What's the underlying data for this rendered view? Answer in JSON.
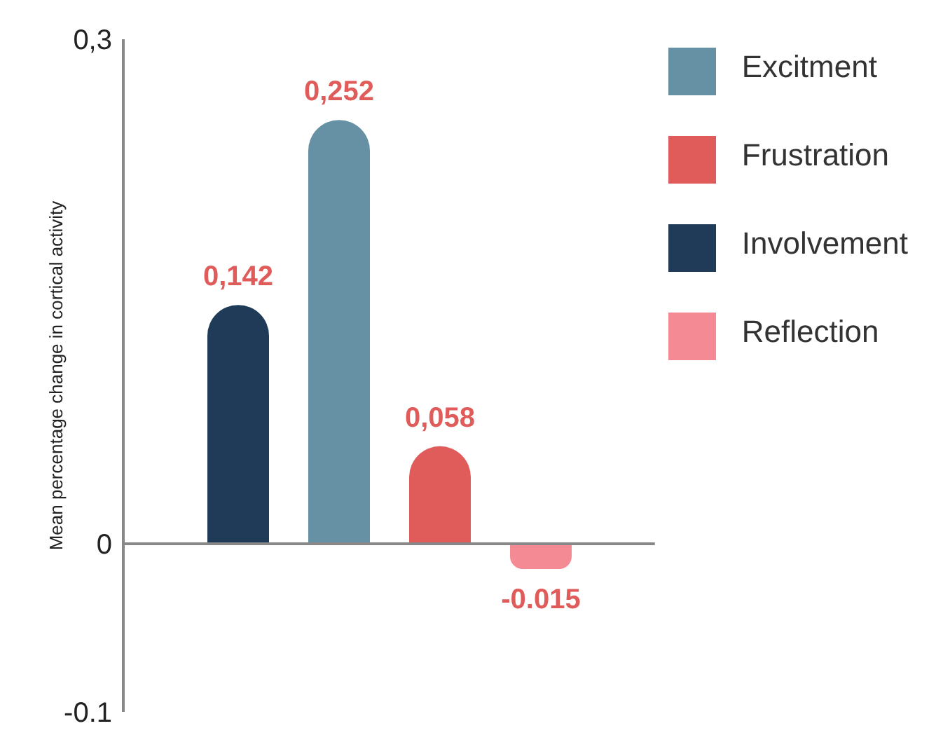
{
  "chart_data": {
    "type": "bar",
    "ylabel": "Mean percentage change in cortical activity",
    "categories": [
      null
    ],
    "series": [
      {
        "name": "Involvement",
        "color": "#1f3b58",
        "values": [
          0.142
        ],
        "value_labels": [
          "0,142"
        ]
      },
      {
        "name": "Excitment",
        "color": "#6690a3",
        "values": [
          0.252
        ],
        "value_labels": [
          "0,252"
        ]
      },
      {
        "name": "Frustration",
        "color": "#e05c5a",
        "values": [
          0.058
        ],
        "value_labels": [
          "0,058"
        ]
      },
      {
        "name": "Reflection",
        "color": "#f48a93",
        "values": [
          -0.015
        ],
        "value_labels": [
          "-0.015"
        ]
      }
    ],
    "ylim": [
      -0.1,
      0.3
    ],
    "yticks": [
      {
        "value": 0.3,
        "label": "0,3"
      },
      {
        "value": 0,
        "label": "0"
      },
      {
        "value": -0.1,
        "label": "-0.1"
      }
    ],
    "tick_labels": "y",
    "legend": "top right"
  }
}
